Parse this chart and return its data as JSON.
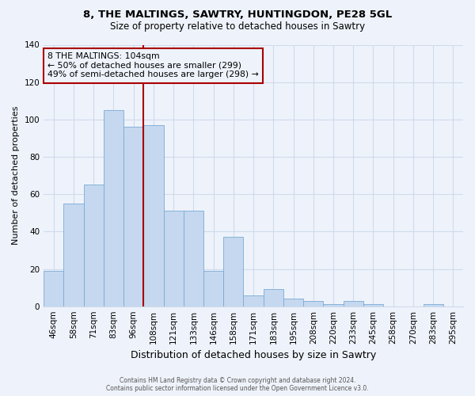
{
  "title": "8, THE MALTINGS, SAWTRY, HUNTINGDON, PE28 5GL",
  "subtitle": "Size of property relative to detached houses in Sawtry",
  "xlabel": "Distribution of detached houses by size in Sawtry",
  "ylabel": "Number of detached properties",
  "categories": [
    "46sqm",
    "58sqm",
    "71sqm",
    "83sqm",
    "96sqm",
    "108sqm",
    "121sqm",
    "133sqm",
    "146sqm",
    "158sqm",
    "171sqm",
    "183sqm",
    "195sqm",
    "208sqm",
    "220sqm",
    "233sqm",
    "245sqm",
    "258sqm",
    "270sqm",
    "283sqm",
    "295sqm"
  ],
  "values": [
    19,
    55,
    65,
    105,
    96,
    97,
    51,
    51,
    19,
    37,
    6,
    9,
    4,
    3,
    1,
    3,
    1,
    0,
    0,
    1,
    0
  ],
  "bar_color": "#c5d8ef",
  "bar_edge_color": "#7aaad4",
  "reference_line_x": 4.5,
  "reference_line_color": "#aa0000",
  "annotation_text": "8 THE MALTINGS: 104sqm\n← 50% of detached houses are smaller (299)\n49% of semi-detached houses are larger (298) →",
  "annotation_box_edge": "#aa0000",
  "ylim": [
    0,
    140
  ],
  "yticks": [
    0,
    20,
    40,
    60,
    80,
    100,
    120,
    140
  ],
  "footer_line1": "Contains HM Land Registry data © Crown copyright and database right 2024.",
  "footer_line2": "Contains public sector information licensed under the Open Government Licence v3.0.",
  "background_color": "#eef3fb",
  "grid_color": "#d0daea",
  "title_fontsize": 9.5,
  "subtitle_fontsize": 8.5,
  "xlabel_fontsize": 9,
  "ylabel_fontsize": 8,
  "tick_fontsize": 7.5,
  "footer_fontsize": 5.5,
  "annotation_fontsize": 7.8
}
